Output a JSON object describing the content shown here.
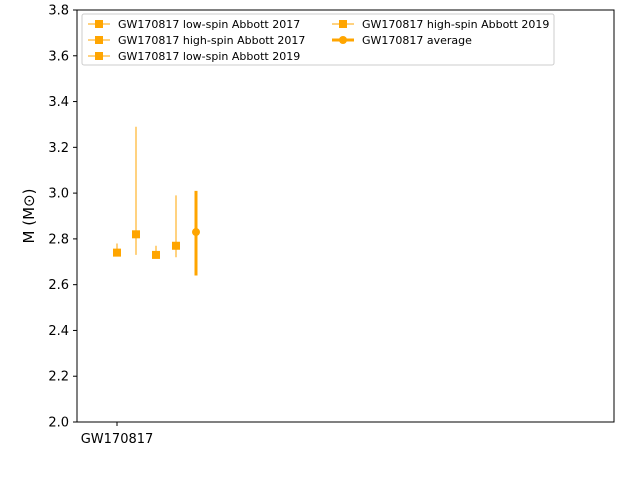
{
  "chart_data": {
    "type": "scatter",
    "title": "",
    "xlabel": "",
    "ylabel": "M (M⊙)",
    "ylim": [
      2.0,
      3.8
    ],
    "yticks": [
      "2.0",
      "2.2",
      "2.4",
      "2.6",
      "2.8",
      "3.0",
      "3.2",
      "3.4",
      "3.6",
      "3.8"
    ],
    "categories": [
      "GW170817"
    ],
    "grid": false,
    "legend_position": "upper-left",
    "legend_columns": 2,
    "series_color": "#ffa500",
    "series": [
      {
        "name": "GW170817 low-spin Abbott 2017",
        "y": 2.74,
        "err_low": 0.01,
        "err_high": 0.04,
        "marker": "square",
        "style": "errorbar"
      },
      {
        "name": "GW170817 high-spin Abbott 2017",
        "y": 2.82,
        "err_low": 0.09,
        "err_high": 0.47,
        "marker": "square",
        "style": "errorbar"
      },
      {
        "name": "GW170817 low-spin Abbott 2019",
        "y": 2.73,
        "err_low": 0.01,
        "err_high": 0.04,
        "marker": "square",
        "style": "errorbar"
      },
      {
        "name": "GW170817 high-spin Abbott 2019",
        "y": 2.77,
        "err_low": 0.05,
        "err_high": 0.22,
        "marker": "square",
        "style": "errorbar"
      },
      {
        "name": "GW170817 average",
        "y": 2.83,
        "err_low": 0.19,
        "err_high": 0.18,
        "marker": "circle",
        "style": "errorbar-bold"
      }
    ]
  }
}
